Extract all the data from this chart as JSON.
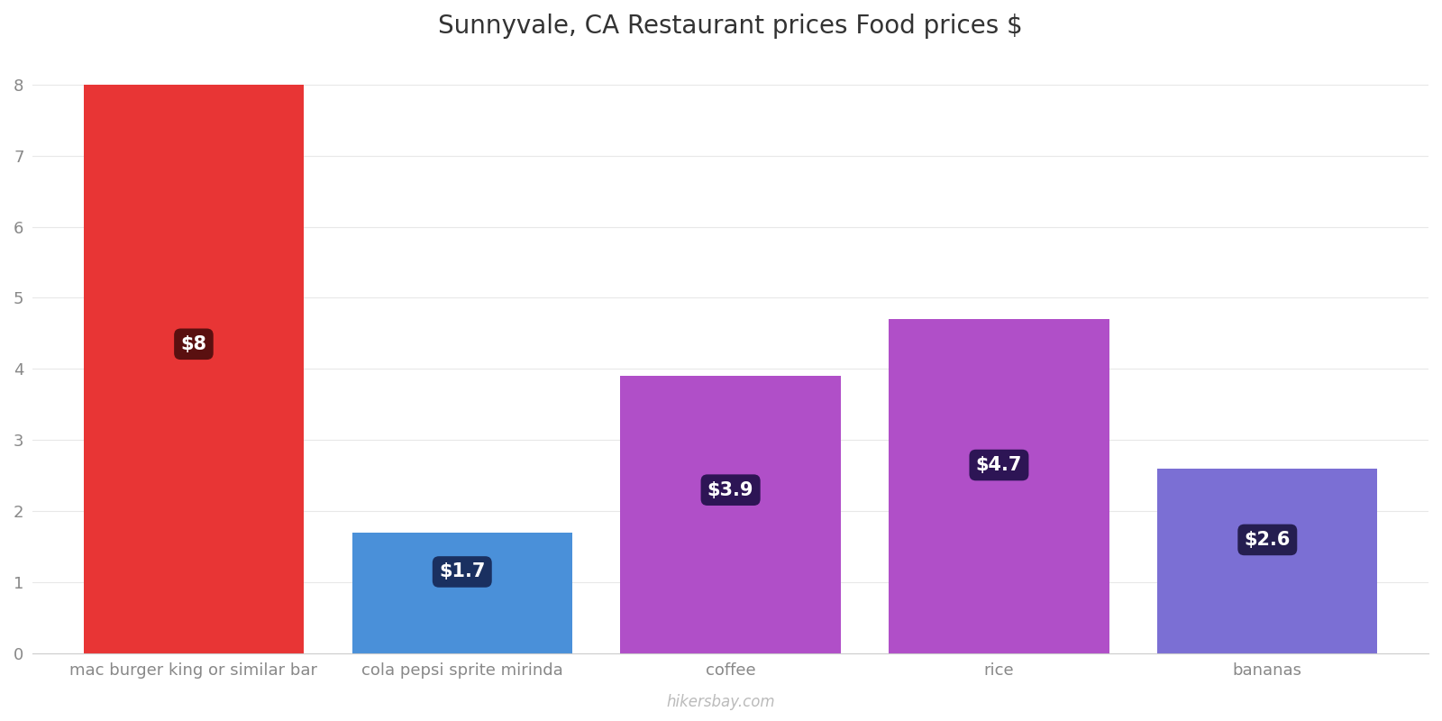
{
  "title": "Sunnyvale, CA Restaurant prices Food prices $",
  "categories": [
    "mac burger king or similar bar",
    "cola pepsi sprite mirinda",
    "coffee",
    "rice",
    "bananas"
  ],
  "values": [
    8.0,
    1.7,
    3.9,
    4.7,
    2.6
  ],
  "bar_colors": [
    "#e83535",
    "#4a90d9",
    "#b04fc8",
    "#b04fc8",
    "#7b6fd4"
  ],
  "label_texts": [
    "$8",
    "$1.7",
    "$3.9",
    "$4.7",
    "$2.6"
  ],
  "label_box_colors": [
    "#5a1010",
    "#1a3060",
    "#2d1555",
    "#2d1555",
    "#251e50"
  ],
  "ylim": [
    0,
    8.4
  ],
  "yticks": [
    0,
    1,
    2,
    3,
    4,
    5,
    6,
    7,
    8
  ],
  "title_fontsize": 20,
  "tick_fontsize": 13,
  "label_fontsize": 15,
  "watermark": "hikersbay.com",
  "background_color": "#ffffff",
  "label_y_positions": [
    4.35,
    1.15,
    2.3,
    2.65,
    1.6
  ],
  "bar_width": 0.82
}
